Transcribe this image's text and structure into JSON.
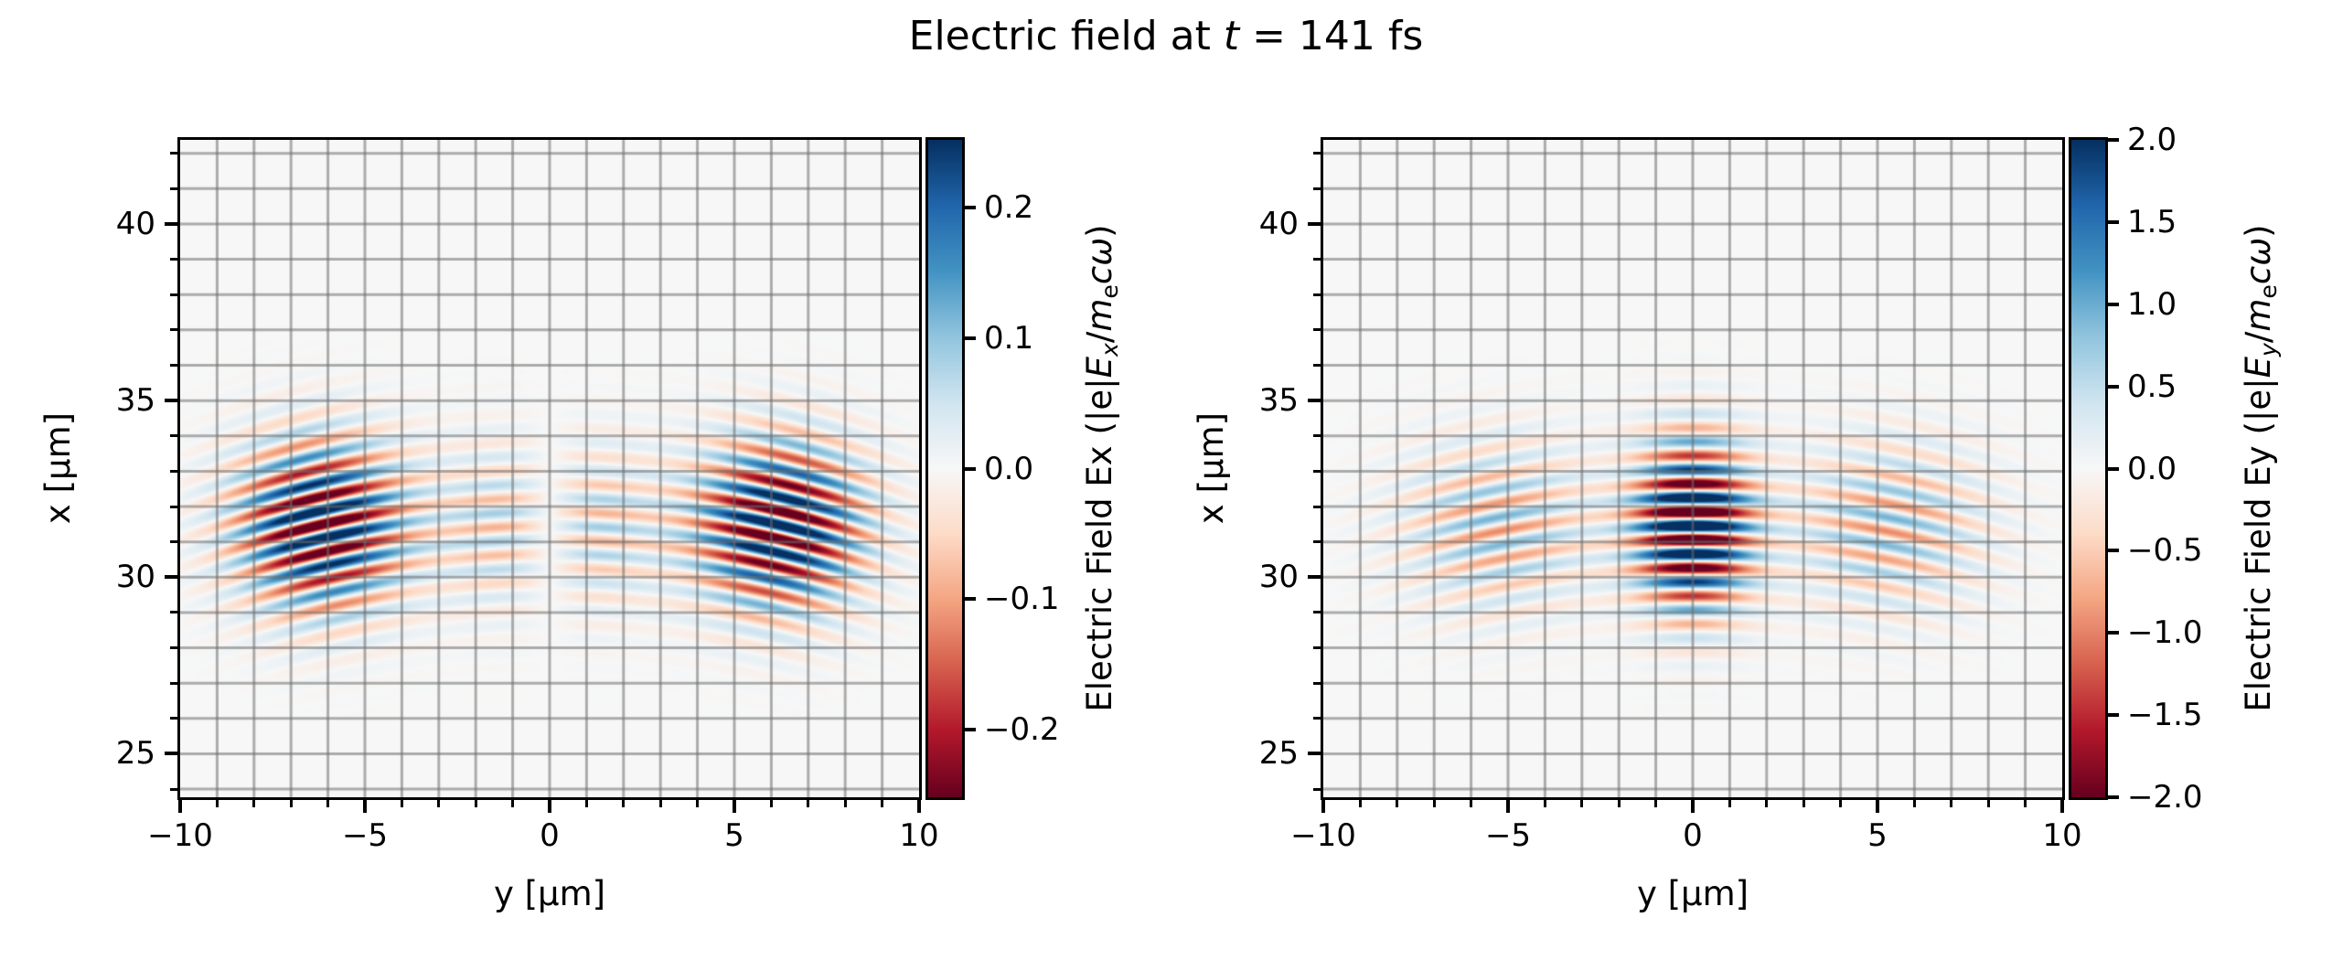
{
  "title": {
    "plain": "Electric field at t = 141 fs",
    "parts": [
      {
        "t": "Electric field at "
      },
      {
        "t": "t",
        "i": true
      },
      {
        "t": " = 141 fs"
      }
    ]
  },
  "colors": {
    "figure_background": "#ffffff",
    "plot_background": "#f7f7f7",
    "grid": "rgba(110,110,110,0.55)",
    "spine": "#000000",
    "colormap_name": "RdBu",
    "rdbu_stops": [
      [
        103,
        0,
        31
      ],
      [
        178,
        24,
        43
      ],
      [
        214,
        96,
        77
      ],
      [
        244,
        165,
        130
      ],
      [
        253,
        219,
        199
      ],
      [
        247,
        247,
        247
      ],
      [
        209,
        229,
        240
      ],
      [
        146,
        197,
        222
      ],
      [
        67,
        147,
        195
      ],
      [
        33,
        102,
        172
      ],
      [
        5,
        48,
        97
      ]
    ]
  },
  "chart_data": {
    "type": "heatmap",
    "title": "Electric field at t = 141 fs",
    "colormap": "RdBu",
    "grid": true,
    "grid_step_um": 1,
    "panels": [
      {
        "name": "Ex",
        "xlabel": "y [μm]",
        "ylabel": "x [μm]",
        "xlim": [
          -10,
          10
        ],
        "ylim": [
          23.77,
          42.38
        ],
        "xticks_major": [
          -10,
          -5,
          0,
          5,
          10
        ],
        "xtick_labels": [
          "−10",
          "−5",
          "0",
          "5",
          "10"
        ],
        "yticks_major": [
          25,
          30,
          35,
          40
        ],
        "ytick_labels": [
          "25",
          "30",
          "35",
          "40"
        ],
        "minor_tick_step_um": 1,
        "colorbar": {
          "label_plain": "Electric Field Ex (|e|Ex/mecω)",
          "label_parts": [
            {
              "t": "Electric Field Ex (|e|"
            },
            {
              "t": "E",
              "i": true
            },
            {
              "t": "x",
              "i": true,
              "s": true
            },
            {
              "t": "/"
            },
            {
              "t": "m",
              "i": true
            },
            {
              "t": "e",
              "s": true
            },
            {
              "t": "c",
              "i": true
            },
            {
              "t": "ω",
              "i": true
            },
            {
              "t": ")"
            }
          ],
          "vmin": -0.252,
          "vmax": 0.252,
          "ticks": [
            0.2,
            0.1,
            0.0,
            -0.1,
            -0.2
          ],
          "tick_labels": [
            "0.2",
            "0.1",
            "0.0",
            "−0.1",
            "−0.2"
          ]
        },
        "field_model": {
          "kind": "odd",
          "description": "Longitudinal field Ex of focused laser pulse: antisymmetric in y (sign flip across y=0, null on axis), strong lobes near |y|≈6 μm that saturate the ±0.25 color scale, weak inner lobes near |y|≈1.5 μm, curved (parabolic) wavefronts bending toward smaller x at large |y|.",
          "wavelength_um": 0.8,
          "pulse_center_x_um": 31.45,
          "pulse_sigma_x_um": 2.25,
          "wavefront_radius_um": 25,
          "side_lobe": {
            "amp": 0.34,
            "center_abs_y_um": 6.2,
            "sigma_um": 2.2
          },
          "center_lobe": {
            "amp_per_um": 0.1,
            "sigma_um": 2.0
          },
          "clip_abs": 0.252
        }
      },
      {
        "name": "Ey",
        "xlabel": "y [μm]",
        "ylabel": "x [μm]",
        "xlim": [
          -10,
          10
        ],
        "ylim": [
          23.77,
          42.38
        ],
        "xticks_major": [
          -10,
          -5,
          0,
          5,
          10
        ],
        "xtick_labels": [
          "−10",
          "−5",
          "0",
          "5",
          "10"
        ],
        "yticks_major": [
          25,
          30,
          35,
          40
        ],
        "ytick_labels": [
          "25",
          "30",
          "35",
          "40"
        ],
        "minor_tick_step_um": 1,
        "colorbar": {
          "label_plain": "Electric Field Ey (|e|Ey/mecω)",
          "label_parts": [
            {
              "t": "Electric Field Ey (|e|"
            },
            {
              "t": "E",
              "i": true
            },
            {
              "t": "y",
              "i": true,
              "s": true
            },
            {
              "t": "/"
            },
            {
              "t": "m",
              "i": true
            },
            {
              "t": "e",
              "s": true
            },
            {
              "t": "c",
              "i": true
            },
            {
              "t": "ω",
              "i": true
            },
            {
              "t": ")"
            }
          ],
          "vmin": -2.0,
          "vmax": 2.0,
          "ticks": [
            2.0,
            1.5,
            1.0,
            0.5,
            0.0,
            -0.5,
            -1.0,
            -1.5,
            -2.0
          ],
          "tick_labels": [
            "2.0",
            "1.5",
            "1.0",
            "0.5",
            "0.0",
            "−0.5",
            "−1.0",
            "−1.5",
            "−2.0"
          ]
        },
        "field_model": {
          "kind": "even",
          "description": "Transverse field Ey of focused laser pulse: symmetric in y, intense central lobe |y|<1.6 μm saturating the ±2 color scale, weaker ring lobes near |y|≈5 μm, dim gap near |y|≈2.5 μm, curved (parabolic) wavefronts bending toward smaller x at large |y|.",
          "wavelength_um": 0.8,
          "pulse_center_x_um": 31.45,
          "pulse_sigma_x_um": 2.25,
          "wavefront_radius_um": 25,
          "core_lobe": {
            "amp": 3.2,
            "sigma_um": 1.5
          },
          "ring_lobe": {
            "amp": 0.95,
            "center_abs_y_um": 5.3,
            "sigma_um": 2.5
          },
          "clip_abs": 2.0
        }
      }
    ]
  }
}
